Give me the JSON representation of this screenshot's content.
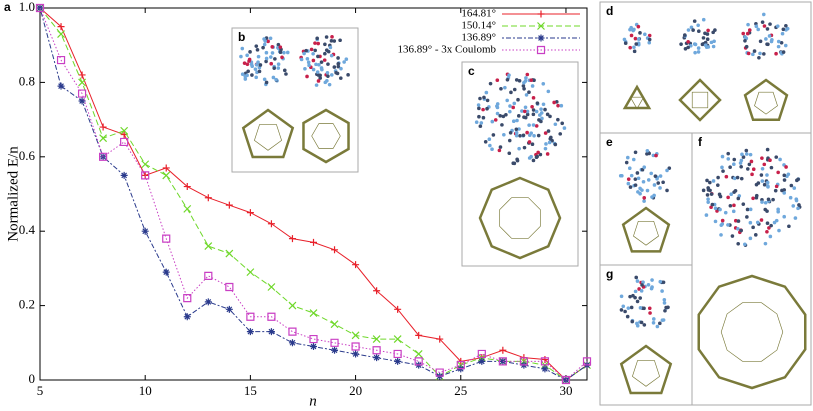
{
  "chart_data": {
    "type": "line",
    "x_label": "n",
    "y_label": "Normalized E/n",
    "x": [
      5,
      6,
      7,
      8,
      9,
      10,
      11,
      12,
      13,
      14,
      15,
      16,
      17,
      18,
      19,
      20,
      21,
      22,
      23,
      24,
      25,
      26,
      27,
      28,
      29,
      30,
      31
    ],
    "series": [
      {
        "name": "164.81°",
        "color": "#e8202a",
        "marker": "plus",
        "dash": "solid",
        "values": [
          1.0,
          0.95,
          0.82,
          0.68,
          0.66,
          0.55,
          0.57,
          0.52,
          0.49,
          0.47,
          0.45,
          0.42,
          0.38,
          0.37,
          0.35,
          0.31,
          0.24,
          0.19,
          0.12,
          0.11,
          0.05,
          0.06,
          0.08,
          0.06,
          0.055,
          0.0,
          0.04
        ]
      },
      {
        "name": "150.14°",
        "color": "#6fd82a",
        "marker": "cross",
        "dash": "dashed",
        "values": [
          1.0,
          0.93,
          0.8,
          0.65,
          0.67,
          0.58,
          0.55,
          0.46,
          0.36,
          0.34,
          0.29,
          0.25,
          0.2,
          0.18,
          0.15,
          0.12,
          0.11,
          0.11,
          0.07,
          0.01,
          0.04,
          0.06,
          0.05,
          0.05,
          0.04,
          0.0,
          0.04
        ]
      },
      {
        "name": "136.89°",
        "color": "#2a3a8c",
        "marker": "star",
        "dash": "dashdot",
        "values": [
          1.0,
          0.79,
          0.75,
          0.6,
          0.55,
          0.4,
          0.29,
          0.17,
          0.21,
          0.19,
          0.13,
          0.13,
          0.1,
          0.09,
          0.08,
          0.07,
          0.06,
          0.05,
          0.04,
          0.01,
          0.03,
          0.05,
          0.05,
          0.04,
          0.03,
          0.0,
          0.04
        ]
      },
      {
        "name": "136.89° - 3x Coulomb",
        "color": "#c93fc4",
        "marker": "square",
        "dash": "dotted",
        "values": [
          1.0,
          0.86,
          0.77,
          0.6,
          0.64,
          0.55,
          0.38,
          0.22,
          0.28,
          0.25,
          0.17,
          0.17,
          0.13,
          0.11,
          0.1,
          0.09,
          0.08,
          0.07,
          0.05,
          0.02,
          0.04,
          0.07,
          0.05,
          0.05,
          0.05,
          0.0,
          0.05
        ]
      }
    ],
    "xlim": [
      5,
      31
    ],
    "xticks": [
      5,
      10,
      15,
      20,
      25,
      30
    ],
    "ylim": [
      0,
      1
    ],
    "yticks": [
      0,
      0.2,
      0.4,
      0.6,
      0.8,
      {
        "value": 1,
        "label": "1.0"
      }
    ],
    "legend": "upper right",
    "grid": false
  },
  "panels": {
    "a": "a",
    "b": "b",
    "c": "c",
    "d": "d",
    "e": "e",
    "f": "f",
    "g": "g"
  }
}
